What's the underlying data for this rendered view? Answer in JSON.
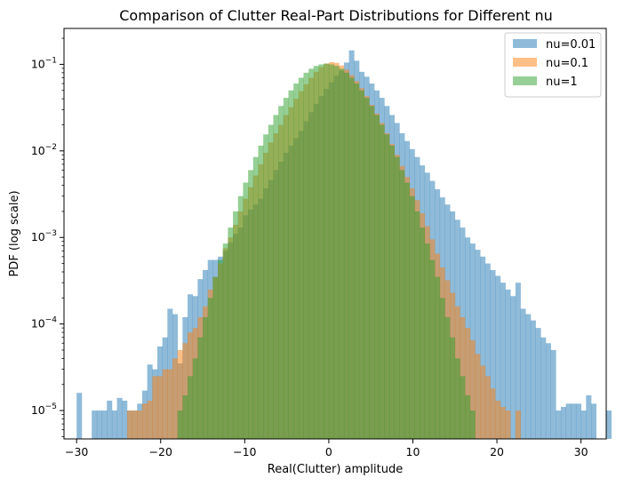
{
  "chart_data": {
    "type": "bar",
    "title": "Comparison of Clutter Real-Part Distributions for Different nu",
    "xlabel": "Real(Clutter) amplitude",
    "ylabel": "PDF (log scale)",
    "xlim": [
      -31.5,
      33.0
    ],
    "ylim": [
      4.7e-06,
      0.26
    ],
    "yscale": "log",
    "bin_width": 0.6,
    "grid": false,
    "legend": "top-right",
    "x_ticks": [
      -30,
      -20,
      -10,
      0,
      10,
      20,
      30
    ],
    "x_tick_labels": [
      "−30",
      "−20",
      "−10",
      "0",
      "10",
      "20",
      "30"
    ],
    "y_ticks": [
      {
        "value": 1e-05,
        "base": "10",
        "exp": "−5"
      },
      {
        "value": 0.0001,
        "base": "10",
        "exp": "−4"
      },
      {
        "value": 0.001,
        "base": "10",
        "exp": "−3"
      },
      {
        "value": 0.01,
        "base": "10",
        "exp": "−2"
      },
      {
        "value": 0.1,
        "base": "10",
        "exp": "−1"
      }
    ],
    "series": [
      {
        "name": "nu=0.01",
        "color": "#1f77b4",
        "alpha": 0.5,
        "x_start": -30.0,
        "values": [
          1.6e-05,
          0,
          0,
          1e-05,
          1e-05,
          1e-05,
          1.3e-05,
          1e-05,
          1.4e-05,
          1.3e-05,
          1e-05,
          1e-05,
          1.2e-05,
          1.7e-05,
          3.4e-05,
          3e-05,
          5.5e-05,
          7e-05,
          0.00015,
          0.00013,
          3.5e-05,
          0.00012,
          0.00022,
          0.00021,
          0.00033,
          0.00042,
          0.00055,
          0.00055,
          0.0006,
          0.0007,
          0.00088,
          0.0011,
          0.0013,
          0.0018,
          0.0021,
          0.0024,
          0.0028,
          0.0037,
          0.0046,
          0.006,
          0.0075,
          0.0095,
          0.0115,
          0.014,
          0.017,
          0.022,
          0.028,
          0.035,
          0.043,
          0.052,
          0.062,
          0.074,
          0.085,
          0.105,
          0.145,
          0.11,
          0.082,
          0.072,
          0.06,
          0.05,
          0.041,
          0.033,
          0.026,
          0.021,
          0.016,
          0.013,
          0.0105,
          0.0085,
          0.0068,
          0.0056,
          0.0045,
          0.0036,
          0.0029,
          0.0024,
          0.002,
          0.0016,
          0.0013,
          0.001,
          0.00085,
          0.00072,
          0.0006,
          0.0005,
          0.00042,
          0.00036,
          0.0003,
          0.00025,
          0.00021,
          0.0003,
          0.00015,
          0.00013,
          0.00011,
          9e-05,
          7e-05,
          6e-05,
          5e-05,
          1e-05,
          1.1e-05,
          1.2e-05,
          1.2e-05,
          1.2e-05,
          1e-05,
          1.5e-05,
          1.2e-05,
          0,
          0,
          1e-05,
          0,
          0,
          0,
          0,
          0,
          0,
          0,
          0,
          0,
          0,
          0,
          0,
          0,
          0,
          0,
          0,
          0,
          0,
          0,
          1e-05
        ]
      },
      {
        "name": "nu=0.1",
        "color": "#ff7f0e",
        "alpha": 0.5,
        "x_start": -24.0,
        "values": [
          1e-05,
          1e-05,
          1e-05,
          1.2e-05,
          1.3e-05,
          2.5e-05,
          2.5e-05,
          3e-05,
          3e-05,
          4e-05,
          5e-05,
          6e-05,
          8e-05,
          9e-05,
          0.00012,
          0.00016,
          0.00025,
          0.00035,
          0.0005,
          0.00075,
          0.001,
          0.0014,
          0.002,
          0.0028,
          0.0038,
          0.0052,
          0.007,
          0.0095,
          0.0125,
          0.016,
          0.02,
          0.026,
          0.032,
          0.04,
          0.049,
          0.059,
          0.07,
          0.082,
          0.093,
          0.102,
          0.106,
          0.104,
          0.097,
          0.087,
          0.075,
          0.064,
          0.053,
          0.043,
          0.034,
          0.027,
          0.021,
          0.016,
          0.012,
          0.009,
          0.0067,
          0.005,
          0.0037,
          0.0027,
          0.0019,
          0.00135,
          0.00095,
          0.00065,
          0.00045,
          0.00032,
          0.00023,
          0.00016,
          0.00012,
          9e-05,
          6.5e-05,
          4.5e-05,
          3.3e-05,
          2.5e-05,
          1.8e-05,
          1.3e-05,
          1.1e-05,
          1e-05,
          0,
          1e-05
        ]
      },
      {
        "name": "nu=1",
        "color": "#2ca02c",
        "alpha": 0.5,
        "x_start": -18.0,
        "values": [
          1e-05,
          1.5e-05,
          2.5e-05,
          4e-05,
          7e-05,
          0.00012,
          0.0002,
          0.00035,
          0.00055,
          0.00085,
          0.0013,
          0.002,
          0.003,
          0.0043,
          0.006,
          0.0085,
          0.0115,
          0.0155,
          0.02,
          0.026,
          0.033,
          0.041,
          0.05,
          0.06,
          0.07,
          0.08,
          0.089,
          0.096,
          0.1,
          0.102,
          0.1,
          0.096,
          0.089,
          0.08,
          0.07,
          0.06,
          0.05,
          0.041,
          0.033,
          0.026,
          0.02,
          0.0155,
          0.0115,
          0.0085,
          0.006,
          0.0043,
          0.003,
          0.002,
          0.0013,
          0.00085,
          0.00055,
          0.00035,
          0.0002,
          0.00012,
          7e-05,
          4e-05,
          2.5e-05,
          1.5e-05,
          1e-05
        ]
      }
    ]
  }
}
